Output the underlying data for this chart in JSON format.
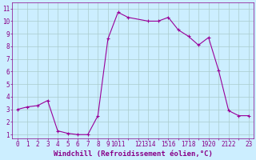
{
  "x": [
    0,
    1,
    2,
    3,
    4,
    5,
    6,
    7,
    8,
    9,
    10,
    11,
    13,
    14,
    15,
    16,
    17,
    18,
    19,
    20,
    21,
    22,
    23
  ],
  "y": [
    3.0,
    3.2,
    3.3,
    3.7,
    1.3,
    1.1,
    1.0,
    1.0,
    2.5,
    8.6,
    10.7,
    10.3,
    10.0,
    10.0,
    10.3,
    9.3,
    8.8,
    8.1,
    8.7,
    6.1,
    2.9,
    2.5,
    2.5
  ],
  "line_color": "#990099",
  "marker": "+",
  "marker_size": 3,
  "background_color": "#cceeff",
  "grid_color": "#aacccc",
  "xlabel": "Windchill (Refroidissement éolien,°C)",
  "xlabel_fontsize": 6.5,
  "yticks": [
    1,
    2,
    3,
    4,
    5,
    6,
    7,
    8,
    9,
    10,
    11
  ],
  "ylim": [
    0.7,
    11.5
  ],
  "xlim": [
    -0.5,
    23.5
  ],
  "tick_fontsize": 5.5,
  "tick_color": "#880088",
  "spine_color": "#880088"
}
